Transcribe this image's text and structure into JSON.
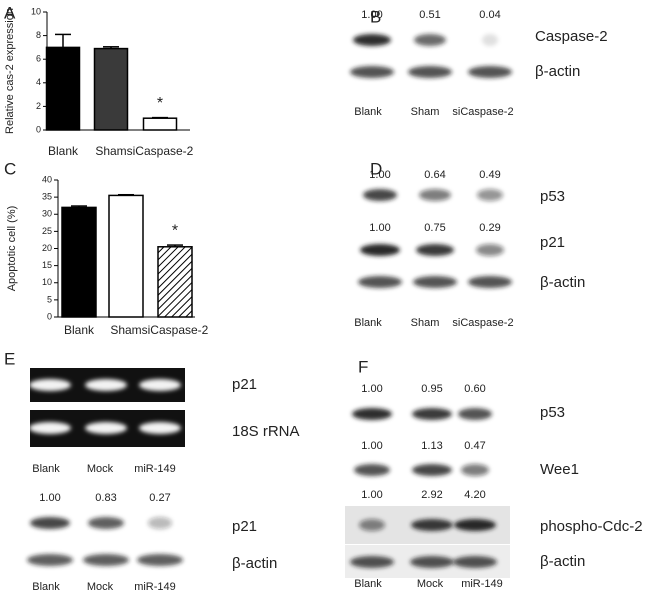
{
  "chart_data": [
    {
      "type": "bar",
      "panel": "A",
      "y_label": "Relative cas-2 expression",
      "categories": [
        "Blank",
        "Sham",
        "siCaspase-2"
      ],
      "values": [
        7.0,
        6.9,
        1.0
      ],
      "errors": [
        1.1,
        0.15,
        0.05
      ],
      "colors": [
        "#000000",
        "#3a3a3a",
        "#ffffff"
      ],
      "ylim": [
        0,
        10
      ],
      "yticks": [
        0,
        2,
        4,
        6,
        8,
        10
      ],
      "annotation": "*"
    },
    {
      "type": "bar",
      "panel": "C",
      "y_label": "Apoptotic cell (%)",
      "categories": [
        "Blank",
        "Sham",
        "siCaspase-2"
      ],
      "values": [
        32,
        35.5,
        20.5
      ],
      "errors": [
        0.4,
        0.2,
        0.5
      ],
      "colors": [
        "#000000",
        "#ffffff",
        "hatch"
      ],
      "ylim": [
        0,
        40
      ],
      "yticks": [
        0,
        5,
        10,
        15,
        20,
        25,
        30,
        35,
        40
      ],
      "annotation": "*"
    }
  ],
  "blots": [
    {
      "panel": "B",
      "sections": [
        {
          "rows": [
            {
              "quant": [
                "1.00",
                "0.51",
                "0.04"
              ],
              "label": "Caspase-2"
            },
            {
              "label": "β-actin"
            }
          ],
          "lanes": [
            "Blank",
            "Sham",
            "siCaspase-2"
          ]
        }
      ]
    },
    {
      "panel": "D",
      "sections": [
        {
          "rows": [
            {
              "quant": [
                "1.00",
                "0.64",
                "0.49"
              ],
              "label": "p53"
            },
            {
              "quant": [
                "1.00",
                "0.75",
                "0.29"
              ],
              "label": "p21"
            },
            {
              "label": "β-actin"
            }
          ],
          "lanes": [
            "Blank",
            "Sham",
            "siCaspase-2"
          ]
        }
      ]
    },
    {
      "panel": "E",
      "sections": [
        {
          "rows": [
            {
              "label": "p21"
            },
            {
              "label": "18S rRNA"
            }
          ],
          "lanes": [
            "Blank",
            "Mock",
            "miR-149"
          ]
        },
        {
          "rows": [
            {
              "quant": [
                "1.00",
                "0.83",
                "0.27"
              ],
              "label": "p21"
            },
            {
              "label": "β-actin"
            }
          ],
          "lanes": [
            "Blank",
            "Mock",
            "miR-149"
          ]
        }
      ]
    },
    {
      "panel": "F",
      "sections": [
        {
          "rows": [
            {
              "quant": [
                "1.00",
                "0.95",
                "0.60"
              ],
              "label": "p53"
            },
            {
              "quant": [
                "1.00",
                "1.13",
                "0.47"
              ],
              "label": "Wee1"
            },
            {
              "quant": [
                "1.00",
                "2.92",
                "4.20"
              ],
              "label": "phospho-Cdc-2"
            },
            {
              "label": "β-actin"
            }
          ],
          "lanes": [
            "Blank",
            "Mock",
            "miR-149"
          ]
        }
      ]
    }
  ]
}
